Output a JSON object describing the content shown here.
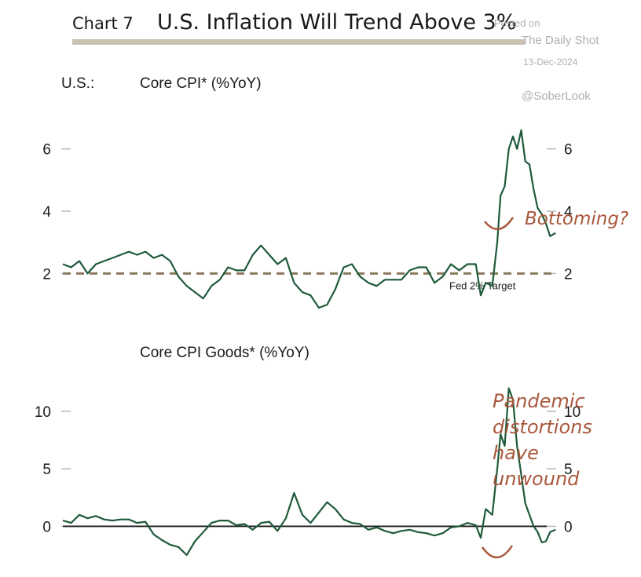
{
  "header": {
    "chart_number": "Chart 7",
    "title": "U.S. Inflation Will Trend Above 3%"
  },
  "watermark": {
    "posted_on": "Posted on",
    "source": "The Daily Shot",
    "date": "13-Dec-2024",
    "handle": "@SoberLook"
  },
  "colors": {
    "line": "#1e5a3a",
    "target_line": "#8a7a5e",
    "annotation": "#a8583c",
    "title_rule": "#c9c1b2",
    "tick": "#b8b8b8",
    "text": "#1a1a1a"
  },
  "chart_data": [
    {
      "type": "line",
      "region_label": "U.S.:",
      "title": "Core CPI* (%YoY)",
      "ylim": [
        0.7,
        7.0
      ],
      "yticks": [
        2,
        4,
        6
      ],
      "grid": false,
      "x": [
        1995.0,
        1995.5,
        1996.0,
        1996.5,
        1997.0,
        1997.5,
        1998.0,
        1998.5,
        1999.0,
        1999.5,
        2000.0,
        2000.5,
        2001.0,
        2001.5,
        2002.0,
        2002.5,
        2003.0,
        2003.5,
        2004.0,
        2004.5,
        2005.0,
        2005.5,
        2006.0,
        2006.5,
        2007.0,
        2007.5,
        2008.0,
        2008.5,
        2009.0,
        2009.5,
        2010.0,
        2010.5,
        2011.0,
        2011.5,
        2012.0,
        2012.5,
        2013.0,
        2013.5,
        2014.0,
        2014.5,
        2015.0,
        2015.5,
        2016.0,
        2016.5,
        2017.0,
        2017.5,
        2018.0,
        2018.5,
        2019.0,
        2019.5,
        2020.0,
        2020.3,
        2020.6,
        2021.0,
        2021.3,
        2021.5,
        2021.75,
        2022.0,
        2022.25,
        2022.5,
        2022.75,
        2023.0,
        2023.25,
        2023.5,
        2023.75,
        2024.0,
        2024.25,
        2024.5,
        2024.83
      ],
      "values": [
        2.3,
        2.2,
        2.4,
        2.0,
        2.3,
        2.4,
        2.5,
        2.6,
        2.7,
        2.6,
        2.7,
        2.5,
        2.6,
        2.4,
        1.9,
        1.6,
        1.4,
        1.2,
        1.6,
        1.8,
        2.2,
        2.1,
        2.1,
        2.6,
        2.9,
        2.6,
        2.3,
        2.5,
        1.7,
        1.4,
        1.3,
        0.9,
        1.0,
        1.5,
        2.2,
        2.3,
        1.9,
        1.7,
        1.6,
        1.8,
        1.8,
        1.8,
        2.1,
        2.2,
        2.2,
        1.7,
        1.9,
        2.3,
        2.1,
        2.3,
        2.3,
        1.3,
        1.7,
        1.6,
        3.0,
        4.5,
        4.8,
        6.0,
        6.4,
        6.0,
        6.6,
        5.6,
        5.5,
        4.7,
        4.1,
        3.9,
        3.6,
        3.2,
        3.3
      ],
      "reference_line": {
        "value": 2,
        "label": "Fed 2% Target"
      },
      "annotation": "Bottoming?"
    },
    {
      "type": "line",
      "title": "Core CPI Goods* (%YoY)",
      "ylim": [
        -2.7,
        13.0
      ],
      "yticks": [
        0,
        5,
        10
      ],
      "grid": false,
      "x": [
        1995.0,
        1995.5,
        1996.0,
        1996.5,
        1997.0,
        1997.5,
        1998.0,
        1998.5,
        1999.0,
        1999.5,
        2000.0,
        2000.5,
        2001.0,
        2001.5,
        2002.0,
        2002.5,
        2003.0,
        2003.5,
        2004.0,
        2004.5,
        2005.0,
        2005.5,
        2006.0,
        2006.5,
        2007.0,
        2007.5,
        2008.0,
        2008.5,
        2009.0,
        2009.5,
        2010.0,
        2010.5,
        2011.0,
        2011.5,
        2012.0,
        2012.5,
        2013.0,
        2013.5,
        2014.0,
        2014.5,
        2015.0,
        2015.5,
        2016.0,
        2016.5,
        2017.0,
        2017.5,
        2018.0,
        2018.5,
        2019.0,
        2019.5,
        2020.0,
        2020.3,
        2020.6,
        2021.0,
        2021.3,
        2021.5,
        2021.75,
        2022.0,
        2022.25,
        2022.5,
        2022.75,
        2023.0,
        2023.25,
        2023.5,
        2023.75,
        2024.0,
        2024.25,
        2024.5,
        2024.83
      ],
      "values": [
        0.5,
        0.3,
        1.0,
        0.7,
        0.9,
        0.6,
        0.5,
        0.6,
        0.6,
        0.3,
        0.4,
        -0.7,
        -1.2,
        -1.6,
        -1.8,
        -2.5,
        -1.3,
        -0.5,
        0.3,
        0.5,
        0.5,
        0.1,
        0.2,
        -0.3,
        0.3,
        0.4,
        -0.4,
        0.7,
        2.9,
        1.0,
        0.3,
        1.2,
        2.1,
        1.5,
        0.6,
        0.3,
        0.2,
        -0.3,
        -0.1,
        -0.4,
        -0.6,
        -0.4,
        -0.3,
        -0.5,
        -0.6,
        -0.8,
        -0.6,
        -0.1,
        0.0,
        0.3,
        0.1,
        -1.0,
        1.5,
        1.0,
        5.0,
        8.0,
        7.0,
        12.0,
        11.0,
        7.0,
        4.5,
        2.0,
        1.0,
        0.0,
        -0.5,
        -1.4,
        -1.3,
        -0.5,
        -0.3
      ],
      "annotation": "Pandemic distortions have unwound",
      "annotation_lines": [
        "Pandemic",
        "distortions",
        "have",
        "unwound"
      ]
    }
  ]
}
